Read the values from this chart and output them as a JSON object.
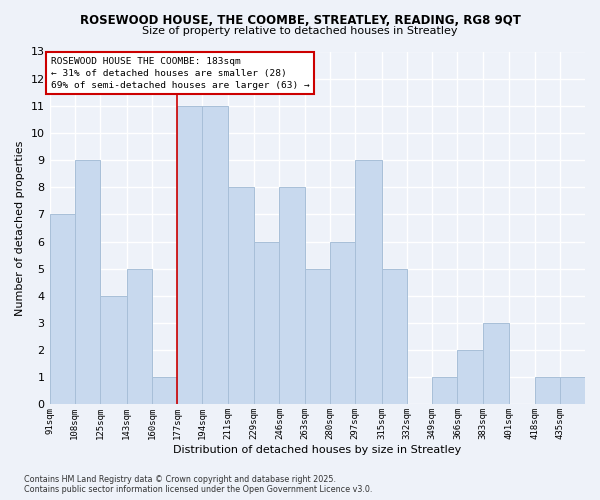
{
  "title1": "ROSEWOOD HOUSE, THE COOMBE, STREATLEY, READING, RG8 9QT",
  "title2": "Size of property relative to detached houses in Streatley",
  "xlabel": "Distribution of detached houses by size in Streatley",
  "ylabel": "Number of detached properties",
  "categories": [
    "91sqm",
    "108sqm",
    "125sqm",
    "143sqm",
    "160sqm",
    "177sqm",
    "194sqm",
    "211sqm",
    "229sqm",
    "246sqm",
    "263sqm",
    "280sqm",
    "297sqm",
    "315sqm",
    "332sqm",
    "349sqm",
    "366sqm",
    "383sqm",
    "401sqm",
    "418sqm",
    "435sqm"
  ],
  "values": [
    7,
    9,
    4,
    5,
    1,
    11,
    11,
    8,
    6,
    8,
    5,
    6,
    9,
    5,
    0,
    1,
    2,
    3,
    0,
    1,
    1
  ],
  "bar_color": "#c8d9ee",
  "bar_edge_color": "#a8bfd8",
  "bin_edges": [
    91,
    108,
    125,
    143,
    160,
    177,
    194,
    211,
    229,
    246,
    263,
    280,
    297,
    315,
    332,
    349,
    366,
    383,
    401,
    418,
    435,
    452
  ],
  "annotation_text": "ROSEWOOD HOUSE THE COOMBE: 183sqm\n← 31% of detached houses are smaller (28)\n69% of semi-detached houses are larger (63) →",
  "ylim": [
    0,
    13
  ],
  "yticks": [
    0,
    1,
    2,
    3,
    4,
    5,
    6,
    7,
    8,
    9,
    10,
    11,
    12,
    13
  ],
  "footer": "Contains HM Land Registry data © Crown copyright and database right 2025.\nContains public sector information licensed under the Open Government Licence v3.0.",
  "background_color": "#eef2f9",
  "grid_color": "#ffffff",
  "annotation_box_color": "#ffffff",
  "annotation_box_edge": "#cc0000",
  "vline_color": "#cc0000",
  "vline_x": 177
}
